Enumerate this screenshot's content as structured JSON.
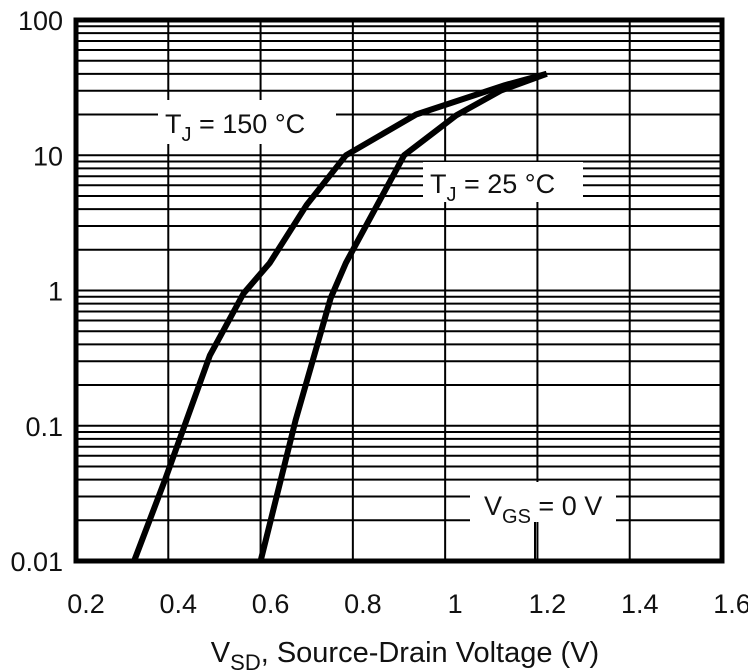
{
  "chart_data": {
    "type": "line",
    "title": "",
    "xlabel": "V",
    "xlabel_sub": "SD",
    "xlabel_rest": ", Source-Drain Voltage (V)",
    "ylabel": "",
    "xlim": [
      0.2,
      1.6
    ],
    "ylim": [
      0.01,
      100
    ],
    "yscale": "log",
    "grid": true,
    "x_ticks": [
      "0.2",
      "0.4",
      "0.6",
      "0.8",
      "1",
      "1.2",
      "1.4",
      "1.6"
    ],
    "y_ticks": [
      "100",
      "10",
      "1",
      "0.1",
      "0.01"
    ],
    "annotations": [
      {
        "main": "T",
        "sub": "J",
        "rest": " = 150 °C"
      },
      {
        "main": "T",
        "sub": "J",
        "rest": " = 25 °C"
      },
      {
        "main": "V",
        "sub": "GS",
        "rest": " = 0 V"
      }
    ],
    "series": [
      {
        "name": "TJ = 150 °C",
        "x": [
          0.326,
          0.393,
          0.49,
          0.563,
          0.62,
          0.7,
          0.785,
          0.937,
          1.13,
          1.22
        ],
        "y": [
          0.01,
          0.04,
          0.33,
          0.95,
          1.6,
          4.3,
          10,
          20,
          33,
          40
        ]
      },
      {
        "name": "TJ = 25 °C",
        "x": [
          0.6,
          0.676,
          0.752,
          0.785,
          0.911,
          1.024,
          1.12,
          1.22
        ],
        "y": [
          0.01,
          0.11,
          0.88,
          1.6,
          10,
          19.7,
          30,
          40
        ]
      }
    ],
    "line_color": "#000000"
  }
}
